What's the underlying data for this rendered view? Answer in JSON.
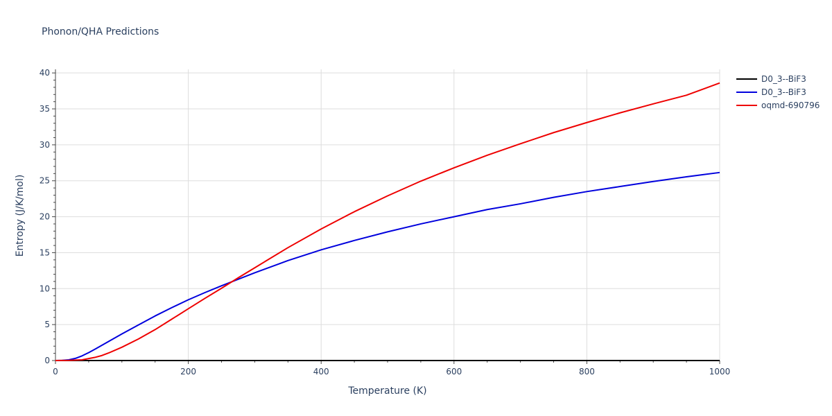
{
  "chart_data": {
    "type": "line",
    "title": "Phonon/QHA Predictions",
    "xlabel": "Temperature (K)",
    "ylabel": "Entropy (J/K/mol)",
    "xlim": [
      0,
      1000
    ],
    "ylim": [
      0,
      40.5
    ],
    "xticks": [
      0,
      200,
      400,
      600,
      800,
      1000
    ],
    "yticks": [
      0,
      5,
      10,
      15,
      20,
      25,
      30,
      35,
      40
    ],
    "xtick_labels": [
      "0",
      "200",
      "400",
      "600",
      "800",
      "1000"
    ],
    "ytick_labels": [
      "0",
      "5",
      "10",
      "15",
      "20",
      "25",
      "30",
      "35",
      "40"
    ],
    "grid": true,
    "legend_position": "top-right",
    "series": [
      {
        "name": "D0_3--BiF3",
        "color": "#000000",
        "x": [
          0,
          1000
        ],
        "y": [
          0,
          0
        ]
      },
      {
        "name": "D0_3--BiF3",
        "color": "#0000dd",
        "x": [
          0,
          10,
          20,
          30,
          40,
          50,
          60,
          80,
          100,
          125,
          150,
          175,
          200,
          225,
          250,
          275,
          300,
          350,
          400,
          450,
          500,
          550,
          600,
          650,
          700,
          750,
          800,
          850,
          900,
          950,
          1000
        ],
        "y": [
          0,
          0.02,
          0.1,
          0.3,
          0.65,
          1.1,
          1.6,
          2.65,
          3.7,
          4.95,
          6.2,
          7.35,
          8.45,
          9.45,
          10.4,
          11.3,
          12.2,
          13.9,
          15.4,
          16.7,
          17.9,
          19.0,
          20.0,
          21.0,
          21.8,
          22.7,
          23.5,
          24.2,
          24.9,
          25.55,
          26.15
        ]
      },
      {
        "name": "oqmd-690796",
        "color": "#ee0000",
        "x": [
          0,
          20,
          40,
          60,
          70,
          80,
          100,
          125,
          150,
          175,
          200,
          225,
          250,
          275,
          300,
          350,
          400,
          450,
          500,
          550,
          600,
          650,
          700,
          750,
          800,
          850,
          900,
          950,
          1000
        ],
        "y": [
          0,
          0.02,
          0.1,
          0.45,
          0.7,
          1.05,
          1.85,
          3.0,
          4.3,
          5.75,
          7.2,
          8.65,
          10.05,
          11.5,
          12.9,
          15.7,
          18.3,
          20.7,
          22.9,
          24.95,
          26.8,
          28.55,
          30.15,
          31.7,
          33.1,
          34.45,
          35.7,
          36.9,
          38.6
        ]
      }
    ]
  }
}
